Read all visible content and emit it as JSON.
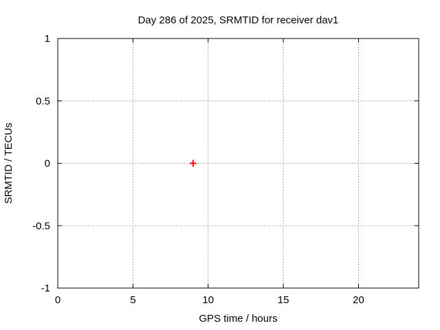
{
  "chart_data": {
    "type": "scatter",
    "title": "Day 286 of 2025, SRMTID for receiver dav1",
    "xlabel": "GPS time / hours",
    "ylabel": "SRMTID / TECUs",
    "xlim": [
      0,
      24
    ],
    "ylim": [
      -1,
      1
    ],
    "xticks": [
      0,
      5,
      10,
      15,
      20
    ],
    "xtick_labels": [
      "0",
      "5",
      "10",
      "15",
      "20"
    ],
    "yticks": [
      -1,
      -0.5,
      0,
      0.5,
      1
    ],
    "ytick_labels": [
      "-1",
      "-0.5",
      "0",
      "0.5",
      "1"
    ],
    "grid": true,
    "legend": "none",
    "series": [
      {
        "name": "SRMTID",
        "marker": "plus",
        "color": "#ff0000",
        "points": [
          {
            "x": 9,
            "y": 0
          }
        ]
      }
    ]
  },
  "colors": {
    "background": "#ffffff",
    "plot_border": "#000000",
    "grid": "#909090",
    "text": "#000000",
    "marker": "#ff0000"
  }
}
